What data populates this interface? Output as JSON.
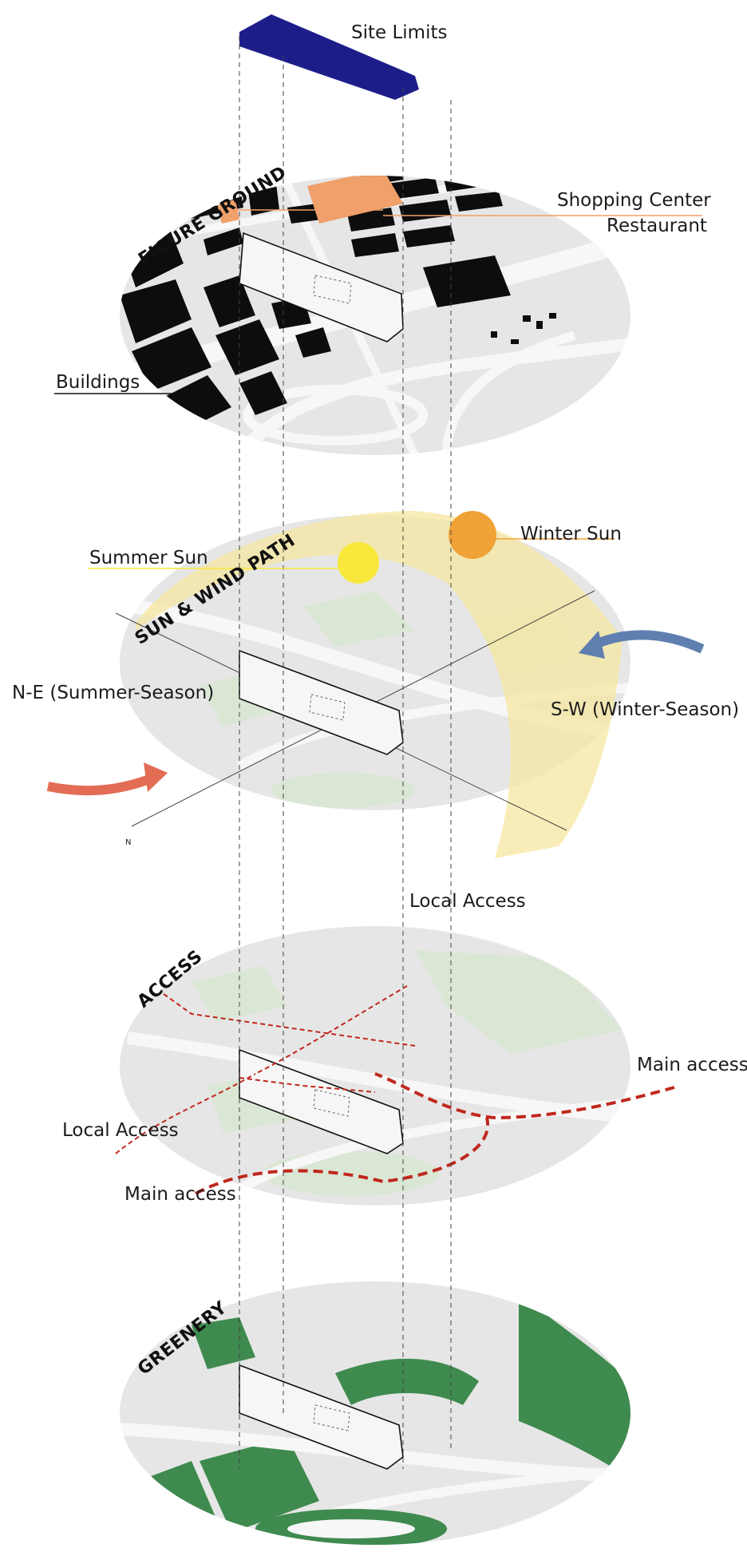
{
  "labels": {
    "site_limits": "Site Limits",
    "shopping_center": "Shopping Center",
    "restaurant": "Restaurant",
    "buildings": "Buildings",
    "summer_sun": "Summer Sun",
    "winter_sun": "Winter Sun",
    "sw_wind": "S-W (Winter-Season)",
    "ne_wind": "N-E (Summer-Season)",
    "north": "N",
    "local_access_top": "Local Access",
    "local_access_left": "Local Access",
    "main_access_right": "Main access",
    "main_access_left": "Main access"
  },
  "sections": {
    "figure_ground": "FIGURE GROUND",
    "sun_wind": "SUN & WIND PATH",
    "access": "ACCESS",
    "greenery": "GREENERY"
  },
  "colors": {
    "site_fill": "#1d1d8a",
    "commercial": "#f0a06b",
    "building": "#0d0d0d",
    "ground": "#e6e6e6",
    "road": "#f7f7f7",
    "park": "#dbe7d5",
    "green": "#3f8a4f",
    "sun_path": "#f6e7a0",
    "summer_sun": "#f7e83b",
    "winter_sun": "#f0a236",
    "wind_sw": "#5f7fb0",
    "wind_ne": "#e36c55",
    "access_line": "#c0281e"
  }
}
